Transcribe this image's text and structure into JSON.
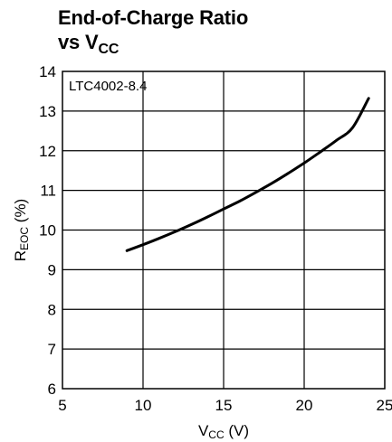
{
  "chart_data": {
    "type": "line",
    "title_line1": "End-of-Charge Ratio",
    "title_line2_main": "vs V",
    "title_line2_sub": "CC",
    "annotation": "LTC4002-8.4",
    "xlabel_main": "V",
    "xlabel_sub": "CC",
    "xlabel_unit": " (V)",
    "ylabel_main": "R",
    "ylabel_sub": "EOC",
    "ylabel_unit": " (%)",
    "xlim": [
      5,
      25
    ],
    "ylim": [
      6,
      14
    ],
    "x_ticks": [
      5,
      10,
      15,
      20,
      25
    ],
    "y_ticks": [
      6,
      7,
      8,
      9,
      10,
      11,
      12,
      13,
      14
    ],
    "grid": true,
    "series": [
      {
        "x": [
          9,
          10,
          11,
          12,
          13,
          14,
          15,
          16,
          17,
          18,
          19,
          20,
          21,
          22,
          23,
          24
        ],
        "y": [
          9.48,
          9.63,
          9.79,
          9.96,
          10.14,
          10.33,
          10.53,
          10.73,
          10.95,
          11.18,
          11.43,
          11.69,
          11.97,
          12.26,
          12.58,
          13.32
        ]
      }
    ]
  }
}
